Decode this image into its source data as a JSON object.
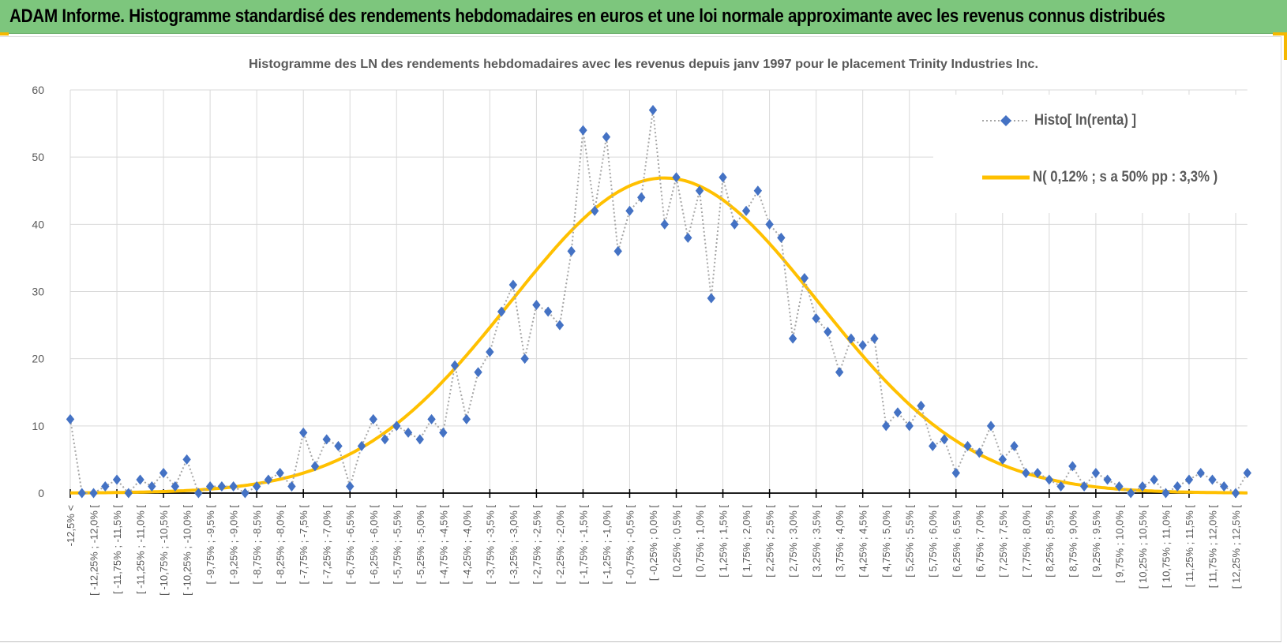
{
  "header": {
    "title": "ADAM Informe. Histogramme standardisé des rendements hebdomadaires en euros et une loi normale approximante avec les revenus connus distribués"
  },
  "colors": {
    "header_bg": "#7dc67d",
    "histo": "#4472c4",
    "normal": "#ffc000",
    "accent": "#f5b800"
  },
  "chart_data": {
    "type": "line",
    "title": "Histogramme des LN des rendements hebdomadaires avec les revenus depuis janv 1997 pour le placement Trinity Industries Inc.",
    "xlabel": "",
    "ylabel": "",
    "ylim": [
      0,
      60
    ],
    "yticks": [
      "0",
      "10",
      "20",
      "30",
      "40",
      "50",
      "60"
    ],
    "grid": true,
    "legend_position": "top-right",
    "bin_width_pct": 0.25,
    "tick_labels": [
      "-12,5% <",
      "[ -12,25% ; -12,0% [",
      "[ -11,75% ; -11,5% [",
      "[ -11,25% ; -11,0% [",
      "[ -10,75% ; -10,5% [",
      "[ -10,25% ; -10,0% [",
      "[ -9,75% ; -9,5% [",
      "[ -9,25% ; -9,0% [",
      "[ -8,75% ; -8,5% [",
      "[ -8,25% ; -8,0% [",
      "[ -7,75% ; -7,5% [",
      "[ -7,25% ; -7,0% [",
      "[ -6,75% ; -6,5% [",
      "[ -6,25% ; -6,0% [",
      "[ -5,75% ; -5,5% [",
      "[ -5,25% ; -5,0% [",
      "[ -4,75% ; -4,5% [",
      "[ -4,25% ; -4,0% [",
      "[ -3,75% ; -3,5% [",
      "[ -3,25% ; -3,0% [",
      "[ -2,75% ; -2,5% [",
      "[ -2,25% ; -2,0% [",
      "[ -1,75% ; -1,5% [",
      "[ -1,25% ; -1,0% [",
      "[ -0,75% ; -0,5% [",
      "[ -0,25% ; 0,0% [",
      "[ 0,25% ; 0,5% [",
      "[ 0,75% ; 1,0% [",
      "[ 1,25% ; 1,5% [",
      "[ 1,75% ; 2,0% [",
      "[ 2,25% ; 2,5% [",
      "[ 2,75% ; 3,0% [",
      "[ 3,25% ; 3,5% [",
      "[ 3,75% ; 4,0% [",
      "[ 4,25% ; 4,5% [",
      "[ 4,75% ; 5,0% [",
      "[ 5,25% ; 5,5% [",
      "[ 5,75% ; 6,0% [",
      "[ 6,25% ; 6,5% [",
      "[ 6,75% ; 7,0% [",
      "[ 7,25% ; 7,5% [",
      "[ 7,75% ; 8,0% [",
      "[ 8,25% ; 8,5% [",
      "[ 8,75% ; 9,0% [",
      "[ 9,25% ; 9,5% [",
      "[ 9,75% ; 10,0% [",
      "[ 10,25% ; 10,5% [",
      "[ 10,75% ; 11,0% [",
      "[ 11,25% ; 11,5% [",
      "[ 11,75% ; 12,0% [",
      "[ 12,25% ; 12,5% ["
    ],
    "series": [
      {
        "name": "Histo[ ln(renta) ]",
        "kind": "dotted-line-diamond",
        "values": [
          11,
          0,
          0,
          1,
          2,
          0,
          2,
          1,
          3,
          1,
          5,
          0,
          1,
          1,
          1,
          0,
          1,
          2,
          3,
          1,
          9,
          4,
          8,
          7,
          1,
          7,
          11,
          8,
          10,
          9,
          8,
          11,
          9,
          19,
          11,
          18,
          21,
          27,
          31,
          20,
          28,
          27,
          25,
          36,
          54,
          42,
          53,
          36,
          42,
          44,
          57,
          40,
          47,
          38,
          45,
          29,
          47,
          40,
          42,
          45,
          40,
          38,
          23,
          32,
          26,
          24,
          18,
          23,
          22,
          23,
          10,
          12,
          10,
          13,
          7,
          8,
          3,
          7,
          6,
          10,
          5,
          7,
          3,
          3,
          2,
          1,
          4,
          1,
          3,
          2,
          1,
          0,
          1,
          2,
          0,
          1,
          2,
          3,
          2,
          1,
          0,
          3
        ]
      },
      {
        "name": "N( 0,12% ; s a 50% pp : 3,3% )",
        "kind": "normal-curve",
        "mean_pct": 0.12,
        "sd_pct": 3.3,
        "peak_value": 46.9
      }
    ]
  }
}
